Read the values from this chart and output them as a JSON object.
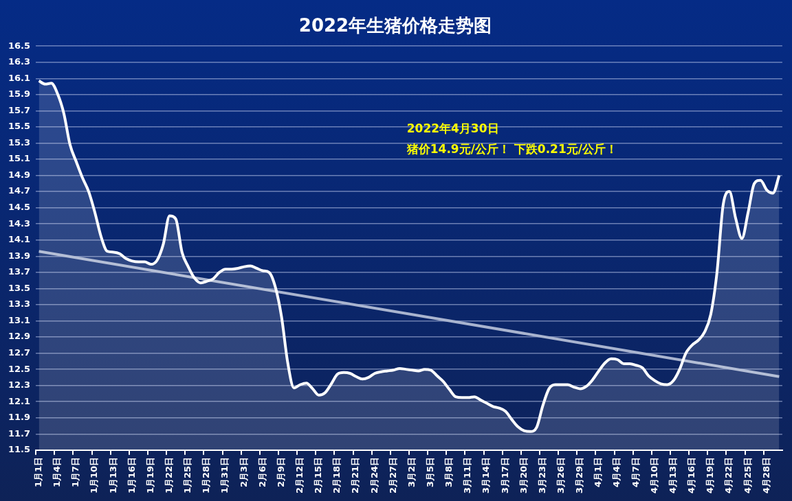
{
  "chart_data": {
    "type": "area",
    "title": "2022年生猪价格走势图",
    "annotations": [
      "2022年4月30日",
      "猪价14.9元/公斤！ 下跌0.21元/公斤！"
    ],
    "categories": [
      "1月1日",
      null,
      null,
      "1月4日",
      null,
      null,
      "1月7日",
      null,
      null,
      "1月10日",
      null,
      null,
      "1月13日",
      null,
      null,
      "1月16日",
      null,
      null,
      "1月19日",
      null,
      null,
      "1月22日",
      null,
      null,
      "1月25日",
      null,
      null,
      "1月28日",
      null,
      null,
      "1月31日",
      null,
      null,
      "2月3日",
      null,
      null,
      "2月6日",
      null,
      null,
      "2月9日",
      null,
      null,
      "2月12日",
      null,
      null,
      "2月15日",
      null,
      null,
      "2月18日",
      null,
      null,
      "2月21日",
      null,
      null,
      "2月24日",
      null,
      null,
      "2月27日",
      null,
      null,
      "3月2日",
      null,
      null,
      "3月5日",
      null,
      null,
      "3月8日",
      null,
      null,
      "3月11日",
      null,
      null,
      "3月14日",
      null,
      null,
      "3月17日",
      null,
      null,
      "3月20日",
      null,
      null,
      "3月23日",
      null,
      null,
      "3月26日",
      null,
      null,
      "3月29日",
      null,
      null,
      "4月1日",
      null,
      null,
      "4月4日",
      null,
      null,
      "4月7日",
      null,
      null,
      "4月10日",
      null,
      null,
      "4月13日",
      null,
      null,
      "4月16日",
      null,
      null,
      "4月19日",
      null,
      null,
      "4月22日",
      null,
      null,
      "4月25日",
      null,
      null,
      "4月28日",
      null,
      null
    ],
    "series": [
      {
        "type": "area",
        "color": "#ffffff",
        "values": [
          16.07,
          16.03,
          16.04,
          15.91,
          15.67,
          15.28,
          15.07,
          14.87,
          14.7,
          14.44,
          14.14,
          13.96,
          13.95,
          13.93,
          13.87,
          13.84,
          13.83,
          13.83,
          13.8,
          13.85,
          14.05,
          14.4,
          14.36,
          13.95,
          13.77,
          13.63,
          13.57,
          13.59,
          13.62,
          13.7,
          13.74,
          13.74,
          13.75,
          13.77,
          13.78,
          13.75,
          13.72,
          13.7,
          13.52,
          13.15,
          12.58,
          12.27,
          12.31,
          12.33,
          12.26,
          12.18,
          12.21,
          12.32,
          12.44,
          12.46,
          12.45,
          12.41,
          12.38,
          12.4,
          12.45,
          12.47,
          12.48,
          12.49,
          12.51,
          12.5,
          12.49,
          12.48,
          12.5,
          12.49,
          12.42,
          12.35,
          12.25,
          12.16,
          12.15,
          12.15,
          12.16,
          12.12,
          12.08,
          12.04,
          12.02,
          11.98,
          11.88,
          11.79,
          11.74,
          11.73,
          11.78,
          12.05,
          12.26,
          12.31,
          12.31,
          12.31,
          12.28,
          12.26,
          12.29,
          12.37,
          12.48,
          12.58,
          12.63,
          12.62,
          12.57,
          12.57,
          12.55,
          12.52,
          12.42,
          12.36,
          12.32,
          12.31,
          12.36,
          12.5,
          12.7,
          12.8,
          12.86,
          12.96,
          13.18,
          13.7,
          14.54,
          14.7,
          14.37,
          14.12,
          14.44,
          14.8,
          14.84,
          14.72,
          14.68,
          14.9
        ]
      },
      {
        "type": "line",
        "color": "#a9b4cf",
        "values": [
          13.96,
          null,
          null,
          null,
          null,
          null,
          null,
          null,
          null,
          null,
          null,
          null,
          null,
          null,
          null,
          null,
          null,
          null,
          null,
          null,
          null,
          null,
          null,
          null,
          null,
          null,
          null,
          null,
          null,
          null,
          null,
          null,
          null,
          null,
          null,
          null,
          null,
          null,
          null,
          null,
          null,
          null,
          null,
          null,
          null,
          null,
          null,
          null,
          null,
          null,
          null,
          null,
          null,
          null,
          null,
          null,
          null,
          null,
          null,
          null,
          null,
          null,
          null,
          null,
          null,
          null,
          null,
          null,
          null,
          null,
          null,
          null,
          null,
          null,
          null,
          null,
          null,
          null,
          null,
          null,
          null,
          null,
          null,
          null,
          null,
          null,
          null,
          null,
          null,
          null,
          null,
          null,
          null,
          null,
          null,
          null,
          null,
          null,
          null,
          null,
          null,
          null,
          null,
          null,
          null,
          null,
          null,
          null,
          null,
          null,
          null,
          null,
          null,
          null,
          null,
          null,
          null,
          null,
          null,
          12.41
        ]
      }
    ],
    "ylim": [
      11.5,
      16.5
    ],
    "yticks": [
      11.5,
      11.7,
      11.9,
      12.1,
      12.3,
      12.5,
      12.7,
      12.9,
      13.1,
      13.3,
      13.5,
      13.7,
      13.9,
      14.1,
      14.3,
      14.5,
      14.7,
      14.9,
      15.1,
      15.3,
      15.5,
      15.7,
      15.9,
      16.1,
      16.3,
      16.5
    ],
    "grid": "y",
    "marker": "none",
    "legend": false
  }
}
